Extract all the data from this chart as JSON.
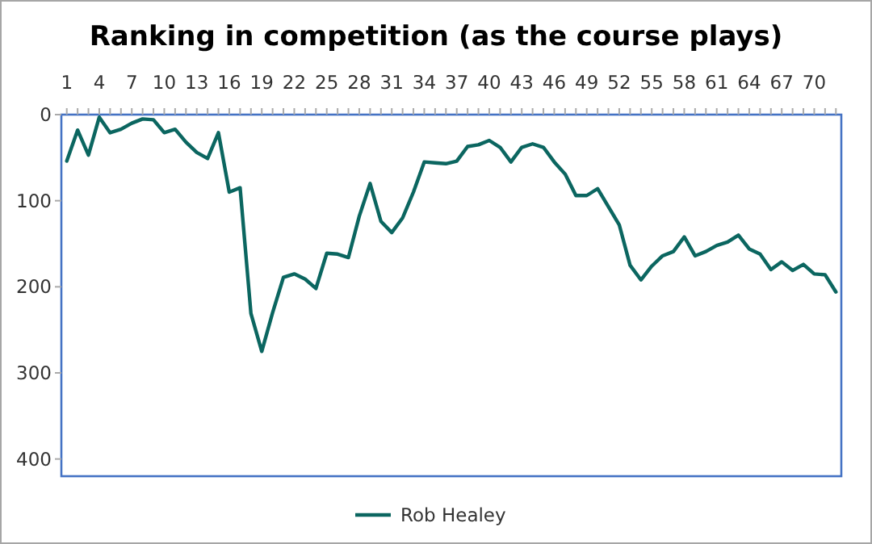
{
  "chart_data": {
    "type": "line",
    "title": "Ranking in competition (as the course plays)",
    "x": [
      1,
      2,
      3,
      4,
      5,
      6,
      7,
      8,
      9,
      10,
      11,
      12,
      13,
      14,
      15,
      16,
      17,
      18,
      19,
      20,
      21,
      22,
      23,
      24,
      25,
      26,
      27,
      28,
      29,
      30,
      31,
      32,
      33,
      34,
      35,
      36,
      37,
      38,
      39,
      40,
      41,
      42,
      43,
      44,
      45,
      46,
      47,
      48,
      49,
      50,
      51,
      52,
      53,
      54,
      55,
      56,
      57,
      58,
      59,
      60,
      61,
      62,
      63,
      64,
      65,
      66,
      67,
      68,
      69,
      70,
      71,
      72
    ],
    "series": [
      {
        "name": "Rob Healey",
        "color": "#0b6660",
        "values": [
          54,
          18,
          47,
          3,
          21,
          17,
          10,
          5,
          6,
          21,
          17,
          32,
          44,
          51,
          21,
          90,
          85,
          231,
          275,
          230,
          189,
          185,
          191,
          202,
          161,
          162,
          166,
          118,
          80,
          124,
          137,
          120,
          90,
          55,
          56,
          57,
          54,
          37,
          35,
          30,
          38,
          55,
          38,
          34,
          38,
          55,
          69,
          94,
          94,
          86,
          107,
          128,
          175,
          192,
          176,
          164,
          159,
          142,
          164,
          159,
          152,
          148,
          140,
          156,
          162,
          180,
          171,
          181,
          174,
          185,
          186,
          206
        ]
      }
    ],
    "xlim": [
      0.5,
      72.5
    ],
    "xticks": [
      1,
      {
        "value": 2,
        "label": null
      },
      {
        "value": 3,
        "label": null
      },
      4,
      {
        "value": 5,
        "label": null
      },
      {
        "value": 6,
        "label": null
      },
      7,
      {
        "value": 8,
        "label": null
      },
      {
        "value": 9,
        "label": null
      },
      10,
      {
        "value": 11,
        "label": null
      },
      {
        "value": 12,
        "label": null
      },
      13,
      {
        "value": 14,
        "label": null
      },
      {
        "value": 15,
        "label": null
      },
      16,
      {
        "value": 17,
        "label": null
      },
      {
        "value": 18,
        "label": null
      },
      19,
      {
        "value": 20,
        "label": null
      },
      {
        "value": 21,
        "label": null
      },
      22,
      {
        "value": 23,
        "label": null
      },
      {
        "value": 24,
        "label": null
      },
      25,
      {
        "value": 26,
        "label": null
      },
      {
        "value": 27,
        "label": null
      },
      28,
      {
        "value": 29,
        "label": null
      },
      {
        "value": 30,
        "label": null
      },
      31,
      {
        "value": 32,
        "label": null
      },
      {
        "value": 33,
        "label": null
      },
      34,
      {
        "value": 35,
        "label": null
      },
      {
        "value": 36,
        "label": null
      },
      37,
      {
        "value": 38,
        "label": null
      },
      {
        "value": 39,
        "label": null
      },
      40,
      {
        "value": 41,
        "label": null
      },
      {
        "value": 42,
        "label": null
      },
      43,
      {
        "value": 44,
        "label": null
      },
      {
        "value": 45,
        "label": null
      },
      46,
      {
        "value": 47,
        "label": null
      },
      {
        "value": 48,
        "label": null
      },
      49,
      {
        "value": 50,
        "label": null
      },
      {
        "value": 51,
        "label": null
      },
      52,
      {
        "value": 53,
        "label": null
      },
      {
        "value": 54,
        "label": null
      },
      55,
      {
        "value": 56,
        "label": null
      },
      {
        "value": 57,
        "label": null
      },
      58,
      {
        "value": 59,
        "label": null
      },
      {
        "value": 60,
        "label": null
      },
      61,
      {
        "value": 62,
        "label": null
      },
      {
        "value": 63,
        "label": null
      },
      64,
      {
        "value": 65,
        "label": null
      },
      {
        "value": 66,
        "label": null
      },
      67,
      {
        "value": 68,
        "label": null
      },
      {
        "value": 69,
        "label": null
      },
      70,
      {
        "value": 71,
        "label": null
      },
      {
        "value": 72,
        "label": null
      }
    ],
    "ylim": [
      420,
      0
    ],
    "yticks": [
      0,
      100,
      200,
      300,
      400
    ],
    "grid": false,
    "legend": "bottom",
    "marker": "none",
    "line_style": "solid"
  }
}
